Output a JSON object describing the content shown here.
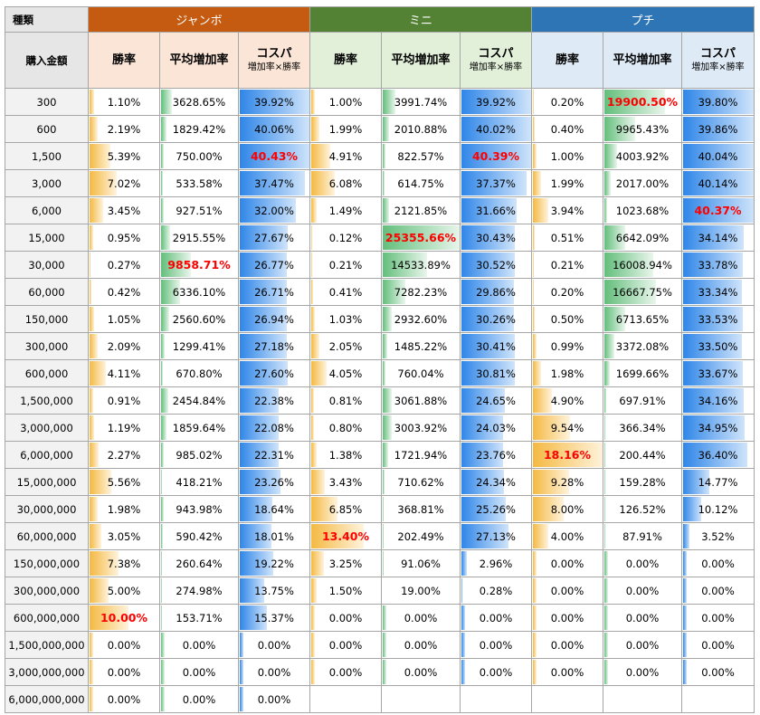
{
  "header": {
    "type_label": "種類",
    "amount_label": "購入金額",
    "groups": [
      "ジャンボ",
      "ミニ",
      "プチ"
    ],
    "win_label": "勝率",
    "increase_label": "平均増加率",
    "cospa_label": "コスパ",
    "cospa_sub": "増加率×勝率"
  },
  "colors": {
    "jumbo": "#c55a11",
    "mini": "#548235",
    "petit": "#2e75b6",
    "win_bar": "#f4b942",
    "increase_bar": "#63be7b",
    "cospa_bar": "#2f86e8",
    "highlight_text": "#ff0000"
  },
  "rows": [
    {
      "amount": "300",
      "groups": [
        {
          "win": "1.10%",
          "inc": "3628.65%",
          "cos": "39.92%"
        },
        {
          "win": "1.00%",
          "inc": "3991.74%",
          "cos": "39.92%"
        },
        {
          "win": "0.20%",
          "inc": "19900.50%",
          "cos": "39.80%"
        }
      ]
    },
    {
      "amount": "600",
      "groups": [
        {
          "win": "2.19%",
          "inc": "1829.42%",
          "cos": "40.06%"
        },
        {
          "win": "1.99%",
          "inc": "2010.88%",
          "cos": "40.02%"
        },
        {
          "win": "0.40%",
          "inc": "9965.43%",
          "cos": "39.86%"
        }
      ]
    },
    {
      "amount": "1,500",
      "groups": [
        {
          "win": "5.39%",
          "inc": "750.00%",
          "cos": "40.43%"
        },
        {
          "win": "4.91%",
          "inc": "822.57%",
          "cos": "40.39%"
        },
        {
          "win": "1.00%",
          "inc": "4003.92%",
          "cos": "40.04%"
        }
      ]
    },
    {
      "amount": "3,000",
      "groups": [
        {
          "win": "7.02%",
          "inc": "533.58%",
          "cos": "37.47%"
        },
        {
          "win": "6.08%",
          "inc": "614.75%",
          "cos": "37.37%"
        },
        {
          "win": "1.99%",
          "inc": "2017.00%",
          "cos": "40.14%"
        }
      ]
    },
    {
      "amount": "6,000",
      "groups": [
        {
          "win": "3.45%",
          "inc": "927.51%",
          "cos": "32.00%"
        },
        {
          "win": "1.49%",
          "inc": "2121.85%",
          "cos": "31.66%"
        },
        {
          "win": "3.94%",
          "inc": "1023.68%",
          "cos": "40.37%"
        }
      ]
    },
    {
      "amount": "15,000",
      "groups": [
        {
          "win": "0.95%",
          "inc": "2915.55%",
          "cos": "27.67%"
        },
        {
          "win": "0.12%",
          "inc": "25355.66%",
          "cos": "30.43%"
        },
        {
          "win": "0.51%",
          "inc": "6642.09%",
          "cos": "34.14%"
        }
      ]
    },
    {
      "amount": "30,000",
      "groups": [
        {
          "win": "0.27%",
          "inc": "9858.71%",
          "cos": "26.77%"
        },
        {
          "win": "0.21%",
          "inc": "14533.89%",
          "cos": "30.52%"
        },
        {
          "win": "0.21%",
          "inc": "16008.94%",
          "cos": "33.78%"
        }
      ]
    },
    {
      "amount": "60,000",
      "groups": [
        {
          "win": "0.42%",
          "inc": "6336.10%",
          "cos": "26.71%"
        },
        {
          "win": "0.41%",
          "inc": "7282.23%",
          "cos": "29.86%"
        },
        {
          "win": "0.20%",
          "inc": "16667.75%",
          "cos": "33.34%"
        }
      ]
    },
    {
      "amount": "150,000",
      "groups": [
        {
          "win": "1.05%",
          "inc": "2560.60%",
          "cos": "26.94%"
        },
        {
          "win": "1.03%",
          "inc": "2932.60%",
          "cos": "30.26%"
        },
        {
          "win": "0.50%",
          "inc": "6713.65%",
          "cos": "33.53%"
        }
      ]
    },
    {
      "amount": "300,000",
      "groups": [
        {
          "win": "2.09%",
          "inc": "1299.41%",
          "cos": "27.18%"
        },
        {
          "win": "2.05%",
          "inc": "1485.22%",
          "cos": "30.41%"
        },
        {
          "win": "0.99%",
          "inc": "3372.08%",
          "cos": "33.50%"
        }
      ]
    },
    {
      "amount": "600,000",
      "groups": [
        {
          "win": "4.11%",
          "inc": "670.80%",
          "cos": "27.60%"
        },
        {
          "win": "4.05%",
          "inc": "760.04%",
          "cos": "30.81%"
        },
        {
          "win": "1.98%",
          "inc": "1699.66%",
          "cos": "33.67%"
        }
      ]
    },
    {
      "amount": "1,500,000",
      "groups": [
        {
          "win": "0.91%",
          "inc": "2454.84%",
          "cos": "22.38%"
        },
        {
          "win": "0.81%",
          "inc": "3061.88%",
          "cos": "24.65%"
        },
        {
          "win": "4.90%",
          "inc": "697.91%",
          "cos": "34.16%"
        }
      ]
    },
    {
      "amount": "3,000,000",
      "groups": [
        {
          "win": "1.19%",
          "inc": "1859.64%",
          "cos": "22.08%"
        },
        {
          "win": "0.80%",
          "inc": "3003.92%",
          "cos": "24.03%"
        },
        {
          "win": "9.54%",
          "inc": "366.34%",
          "cos": "34.95%"
        }
      ]
    },
    {
      "amount": "6,000,000",
      "groups": [
        {
          "win": "2.27%",
          "inc": "985.02%",
          "cos": "22.31%"
        },
        {
          "win": "1.38%",
          "inc": "1721.94%",
          "cos": "23.76%"
        },
        {
          "win": "18.16%",
          "inc": "200.44%",
          "cos": "36.40%"
        }
      ]
    },
    {
      "amount": "15,000,000",
      "groups": [
        {
          "win": "5.56%",
          "inc": "418.21%",
          "cos": "23.26%"
        },
        {
          "win": "3.43%",
          "inc": "710.62%",
          "cos": "24.34%"
        },
        {
          "win": "9.28%",
          "inc": "159.28%",
          "cos": "14.77%"
        }
      ]
    },
    {
      "amount": "30,000,000",
      "groups": [
        {
          "win": "1.98%",
          "inc": "943.98%",
          "cos": "18.64%"
        },
        {
          "win": "6.85%",
          "inc": "368.81%",
          "cos": "25.26%"
        },
        {
          "win": "8.00%",
          "inc": "126.52%",
          "cos": "10.12%"
        }
      ]
    },
    {
      "amount": "60,000,000",
      "groups": [
        {
          "win": "3.05%",
          "inc": "590.42%",
          "cos": "18.01%"
        },
        {
          "win": "13.40%",
          "inc": "202.49%",
          "cos": "27.13%"
        },
        {
          "win": "4.00%",
          "inc": "87.91%",
          "cos": "3.52%"
        }
      ]
    },
    {
      "amount": "150,000,000",
      "groups": [
        {
          "win": "7.38%",
          "inc": "260.64%",
          "cos": "19.22%"
        },
        {
          "win": "3.25%",
          "inc": "91.06%",
          "cos": "2.96%"
        },
        {
          "win": "0.00%",
          "inc": "0.00%",
          "cos": "0.00%"
        }
      ]
    },
    {
      "amount": "300,000,000",
      "groups": [
        {
          "win": "5.00%",
          "inc": "274.98%",
          "cos": "13.75%"
        },
        {
          "win": "1.50%",
          "inc": "19.00%",
          "cos": "0.28%"
        },
        {
          "win": "0.00%",
          "inc": "0.00%",
          "cos": "0.00%"
        }
      ]
    },
    {
      "amount": "600,000,000",
      "groups": [
        {
          "win": "10.00%",
          "inc": "153.71%",
          "cos": "15.37%"
        },
        {
          "win": "0.00%",
          "inc": "0.00%",
          "cos": "0.00%"
        },
        {
          "win": "0.00%",
          "inc": "0.00%",
          "cos": "0.00%"
        }
      ]
    },
    {
      "amount": "1,500,000,000",
      "groups": [
        {
          "win": "0.00%",
          "inc": "0.00%",
          "cos": "0.00%"
        },
        {
          "win": "0.00%",
          "inc": "0.00%",
          "cos": "0.00%"
        },
        {
          "win": "0.00%",
          "inc": "0.00%",
          "cos": "0.00%"
        }
      ]
    },
    {
      "amount": "3,000,000,000",
      "groups": [
        {
          "win": "0.00%",
          "inc": "0.00%",
          "cos": "0.00%"
        },
        {
          "win": "0.00%",
          "inc": "0.00%",
          "cos": "0.00%"
        },
        {
          "win": "0.00%",
          "inc": "0.00%",
          "cos": "0.00%"
        }
      ]
    },
    {
      "amount": "6,000,000,000",
      "groups": [
        {
          "win": "0.00%",
          "inc": "0.00%",
          "cos": "0.00%"
        },
        null,
        null
      ]
    }
  ],
  "highlights": [
    [
      "300",
      2,
      "inc"
    ],
    [
      "1,500",
      0,
      "cos"
    ],
    [
      "1,500",
      1,
      "cos"
    ],
    [
      "6,000",
      2,
      "cos"
    ],
    [
      "15,000",
      1,
      "inc"
    ],
    [
      "30,000",
      0,
      "inc"
    ],
    [
      "6,000,000",
      2,
      "win"
    ],
    [
      "60,000,000",
      1,
      "win"
    ],
    [
      "600,000,000",
      0,
      "win"
    ]
  ]
}
